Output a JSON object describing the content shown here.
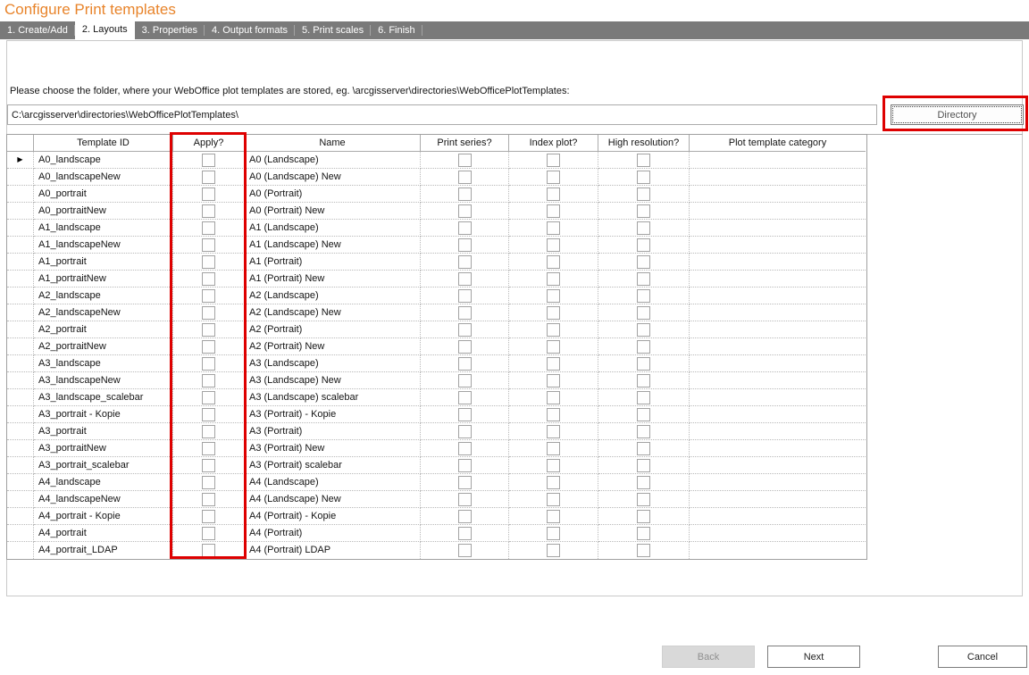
{
  "window": {
    "title": "Configure Print templates"
  },
  "tabs": [
    {
      "label": "1. Create/Add",
      "active": false
    },
    {
      "label": "2. Layouts",
      "active": true
    },
    {
      "label": "3. Properties",
      "active": false
    },
    {
      "label": "4. Output formats",
      "active": false
    },
    {
      "label": "5. Print scales",
      "active": false
    },
    {
      "label": "6. Finish",
      "active": false
    }
  ],
  "folder_section": {
    "instruction": "Please choose the folder, where your WebOffice plot templates are stored, eg. \\arcgisserver\\directories\\WebOfficePlotTemplates:",
    "path_value": "C:\\arcgisserver\\directories\\WebOfficePlotTemplates\\",
    "directory_button_label": "Directory"
  },
  "grid": {
    "columns": [
      "Template ID",
      "Apply?",
      "Name",
      "Print series?",
      "Index plot?",
      "High resolution?",
      "Plot template category"
    ],
    "current_row_index": 0,
    "rows": [
      {
        "template_id": "A0_landscape",
        "apply": false,
        "name": "A0 (Landscape)",
        "print_series": false,
        "index_plot": false,
        "high_resolution": false,
        "category": ""
      },
      {
        "template_id": "A0_landscapeNew",
        "apply": false,
        "name": "A0 (Landscape) New",
        "print_series": false,
        "index_plot": false,
        "high_resolution": false,
        "category": ""
      },
      {
        "template_id": "A0_portrait",
        "apply": false,
        "name": "A0 (Portrait)",
        "print_series": false,
        "index_plot": false,
        "high_resolution": false,
        "category": ""
      },
      {
        "template_id": "A0_portraitNew",
        "apply": false,
        "name": "A0 (Portrait) New",
        "print_series": false,
        "index_plot": false,
        "high_resolution": false,
        "category": ""
      },
      {
        "template_id": "A1_landscape",
        "apply": false,
        "name": "A1 (Landscape)",
        "print_series": false,
        "index_plot": false,
        "high_resolution": false,
        "category": ""
      },
      {
        "template_id": "A1_landscapeNew",
        "apply": false,
        "name": "A1 (Landscape) New",
        "print_series": false,
        "index_plot": false,
        "high_resolution": false,
        "category": ""
      },
      {
        "template_id": "A1_portrait",
        "apply": false,
        "name": "A1 (Portrait)",
        "print_series": false,
        "index_plot": false,
        "high_resolution": false,
        "category": ""
      },
      {
        "template_id": "A1_portraitNew",
        "apply": false,
        "name": "A1 (Portrait) New",
        "print_series": false,
        "index_plot": false,
        "high_resolution": false,
        "category": ""
      },
      {
        "template_id": "A2_landscape",
        "apply": false,
        "name": "A2 (Landscape)",
        "print_series": false,
        "index_plot": false,
        "high_resolution": false,
        "category": ""
      },
      {
        "template_id": "A2_landscapeNew",
        "apply": false,
        "name": "A2 (Landscape) New",
        "print_series": false,
        "index_plot": false,
        "high_resolution": false,
        "category": ""
      },
      {
        "template_id": "A2_portrait",
        "apply": false,
        "name": "A2 (Portrait)",
        "print_series": false,
        "index_plot": false,
        "high_resolution": false,
        "category": ""
      },
      {
        "template_id": "A2_portraitNew",
        "apply": false,
        "name": "A2 (Portrait) New",
        "print_series": false,
        "index_plot": false,
        "high_resolution": false,
        "category": ""
      },
      {
        "template_id": "A3_landscape",
        "apply": false,
        "name": "A3 (Landscape)",
        "print_series": false,
        "index_plot": false,
        "high_resolution": false,
        "category": ""
      },
      {
        "template_id": "A3_landscapeNew",
        "apply": false,
        "name": "A3 (Landscape) New",
        "print_series": false,
        "index_plot": false,
        "high_resolution": false,
        "category": ""
      },
      {
        "template_id": "A3_landscape_scalebar",
        "apply": false,
        "name": "A3 (Landscape) scalebar",
        "print_series": false,
        "index_plot": false,
        "high_resolution": false,
        "category": ""
      },
      {
        "template_id": "A3_portrait - Kopie",
        "apply": false,
        "name": "A3 (Portrait) - Kopie",
        "print_series": false,
        "index_plot": false,
        "high_resolution": false,
        "category": ""
      },
      {
        "template_id": "A3_portrait",
        "apply": false,
        "name": "A3 (Portrait)",
        "print_series": false,
        "index_plot": false,
        "high_resolution": false,
        "category": ""
      },
      {
        "template_id": "A3_portraitNew",
        "apply": false,
        "name": "A3 (Portrait) New",
        "print_series": false,
        "index_plot": false,
        "high_resolution": false,
        "category": ""
      },
      {
        "template_id": "A3_portrait_scalebar",
        "apply": false,
        "name": "A3 (Portrait) scalebar",
        "print_series": false,
        "index_plot": false,
        "high_resolution": false,
        "category": ""
      },
      {
        "template_id": "A4_landscape",
        "apply": false,
        "name": "A4 (Landscape)",
        "print_series": false,
        "index_plot": false,
        "high_resolution": false,
        "category": ""
      },
      {
        "template_id": "A4_landscapeNew",
        "apply": false,
        "name": "A4 (Landscape) New",
        "print_series": false,
        "index_plot": false,
        "high_resolution": false,
        "category": ""
      },
      {
        "template_id": "A4_portrait - Kopie",
        "apply": false,
        "name": "A4 (Portrait) - Kopie",
        "print_series": false,
        "index_plot": false,
        "high_resolution": false,
        "category": ""
      },
      {
        "template_id": "A4_portrait",
        "apply": false,
        "name": "A4 (Portrait)",
        "print_series": false,
        "index_plot": false,
        "high_resolution": false,
        "category": ""
      },
      {
        "template_id": "A4_portrait_LDAP",
        "apply": false,
        "name": "A4 (Portrait) LDAP",
        "print_series": false,
        "index_plot": false,
        "high_resolution": false,
        "category": ""
      }
    ]
  },
  "footer": {
    "back_label": "Back",
    "next_label": "Next",
    "cancel_label": "Cancel"
  },
  "icons": {
    "current_row_marker": "current-row-triangle",
    "current_row_marker_glyph": "▶"
  },
  "annotations": {
    "color": "#de0000",
    "boxes": [
      "directory-button",
      "apply-column"
    ]
  },
  "colors": {
    "title": "#e8842b",
    "tab_strip_bg": "#7a7a7a",
    "tab_active_bg": "#ffffff"
  }
}
